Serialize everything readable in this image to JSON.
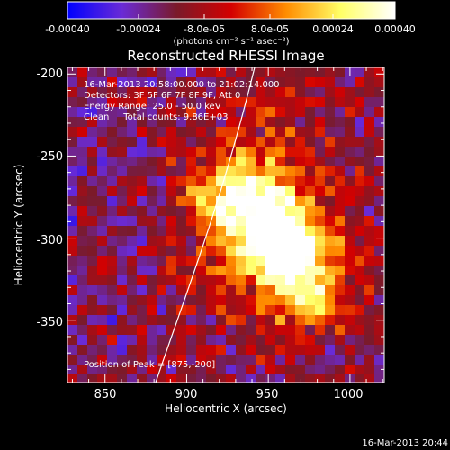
{
  "colorbar": {
    "ticks": [
      "-0.00040",
      "-0.00024",
      "-8.0e-05",
      "8.0e-05",
      "0.00024",
      "0.00040"
    ],
    "unit_label": "(photons cm⁻² s⁻¹ asec⁻²)",
    "range": [
      -0.0004,
      0.0004
    ],
    "colors": [
      "#0000ff",
      "#6a2bd6",
      "#7a1a2a",
      "#d40000",
      "#ff8c00",
      "#ffff66",
      "#ffffff"
    ]
  },
  "plot": {
    "title": "Reconstructed RHESSI Image",
    "annotations": [
      "16-Mar-2013 20:58:00.000 to 21:02:14.000",
      "Detectors: 3F 5F 6F 7F 8F 9F, Att 0",
      "Energy Range: 25.0 - 50.0 keV",
      "Clean     Total counts: 9.86E+03"
    ],
    "peak_label": "Position of Peak = [875,-200]",
    "limb_color": "#ffffff"
  },
  "chart_data": {
    "type": "heatmap",
    "title": "Reconstructed RHESSI Image",
    "xlabel": "Heliocentric X (arcsec)",
    "ylabel": "Heliocentric Y (arcsec)",
    "xlim": [
      827,
      1021
    ],
    "ylim": [
      -388,
      -196
    ],
    "x_ticks": [
      "850",
      "900",
      "950",
      "1000"
    ],
    "y_ticks": [
      "-200",
      "-250",
      "-300",
      "-350"
    ],
    "peak_position": [
      875,
      -200
    ],
    "bright_sources": [
      {
        "x": 958,
        "y": -302,
        "level": 1.0
      },
      {
        "x": 930,
        "y": -275,
        "level": 0.7
      },
      {
        "x": 975,
        "y": -330,
        "level": 0.55
      }
    ]
  },
  "footer": {
    "timestamp": "16-Mar-2013 20:44"
  }
}
